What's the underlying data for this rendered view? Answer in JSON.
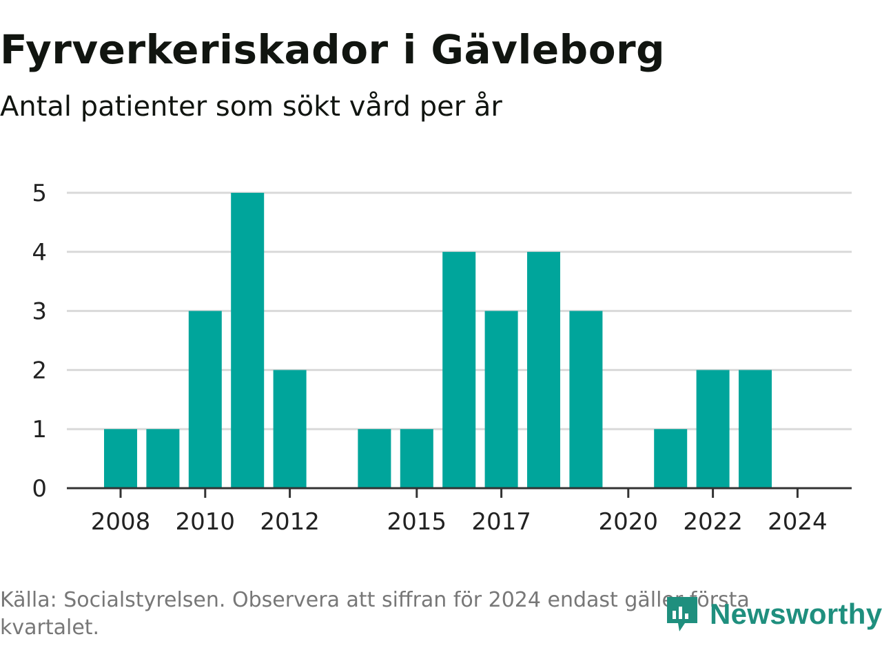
{
  "header": {
    "title": "Fyrverkeriskador i Gävleborg",
    "subtitle": "Antal patienter som sökt vård per år"
  },
  "chart_data": {
    "type": "bar",
    "title": "Fyrverkeriskador i Gävleborg",
    "subtitle": "Antal patienter som sökt vård per år",
    "xlabel": "",
    "ylabel": "",
    "x": [
      2008,
      2009,
      2010,
      2011,
      2012,
      2013,
      2014,
      2015,
      2016,
      2017,
      2018,
      2019,
      2020,
      2021,
      2022,
      2023,
      2024
    ],
    "values": [
      1,
      1,
      3,
      5,
      2,
      null,
      1,
      1,
      4,
      3,
      4,
      3,
      null,
      1,
      2,
      2,
      null
    ],
    "xticks": [
      2008,
      2010,
      2012,
      2015,
      2017,
      2020,
      2022,
      2024
    ],
    "yticks": [
      0,
      1,
      2,
      3,
      4,
      5
    ],
    "ylim": [
      0,
      5
    ],
    "xlim": [
      2007,
      2025
    ],
    "grid": true,
    "legend": "none",
    "bar_color": "#00a59b"
  },
  "footer": {
    "source": "Källa: Socialstyrelsen. Observera att siffran för 2024 endast gäller första kvartalet."
  },
  "brand": {
    "name": "Newsworthy",
    "color": "#1f8f7e",
    "icon": "newsworthy-logo-icon"
  }
}
